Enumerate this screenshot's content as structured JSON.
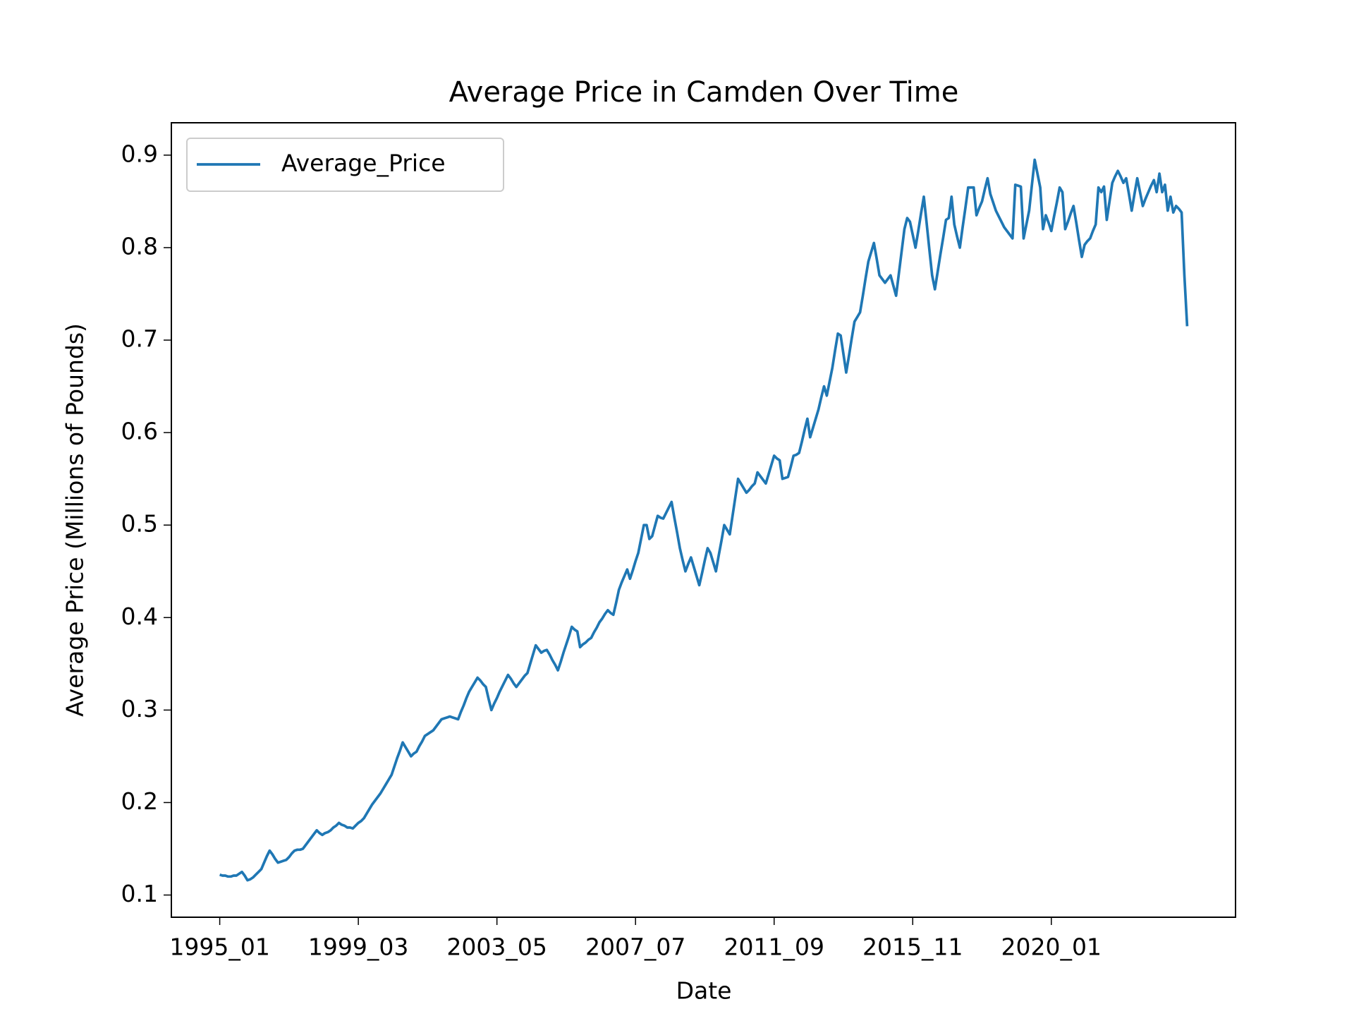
{
  "chart_data": {
    "type": "line",
    "title": "Average Price in Camden Over Time",
    "x_label": "Date",
    "y_label": "Average Price (Millions of Pounds)",
    "categories": [
      "1995_01",
      null,
      null,
      null,
      null,
      null,
      null,
      null,
      null,
      null,
      null,
      null,
      null,
      null,
      null,
      null,
      null,
      null,
      null,
      null,
      null,
      null,
      null,
      null,
      null,
      null,
      null,
      null,
      null,
      null,
      null,
      null,
      null,
      null,
      null,
      null,
      null,
      null,
      null,
      null,
      null,
      null,
      null,
      null,
      null,
      null,
      null,
      null,
      null,
      null,
      "1999_03",
      null,
      null,
      null,
      null,
      null,
      null,
      null,
      null,
      null,
      null,
      null,
      null,
      null,
      null,
      null,
      null,
      null,
      null,
      null,
      null,
      null,
      null,
      null,
      null,
      null,
      null,
      null,
      null,
      null,
      null,
      null,
      null,
      null,
      null,
      null,
      null,
      null,
      null,
      null,
      null,
      null,
      null,
      null,
      null,
      null,
      null,
      null,
      null,
      null,
      "2003_05",
      null,
      null,
      null,
      null,
      null,
      null,
      null,
      null,
      null,
      null,
      null,
      null,
      null,
      null,
      null,
      null,
      null,
      null,
      null,
      null,
      null,
      null,
      null,
      null,
      null,
      null,
      null,
      null,
      null,
      null,
      null,
      null,
      null,
      null,
      null,
      null,
      null,
      null,
      null,
      null,
      null,
      null,
      null,
      null,
      null,
      null,
      null,
      null,
      null,
      "2007_07",
      null,
      null,
      null,
      null,
      null,
      null,
      null,
      null,
      null,
      null,
      null,
      null,
      null,
      null,
      null,
      null,
      null,
      null,
      null,
      null,
      null,
      null,
      null,
      null,
      null,
      null,
      null,
      null,
      null,
      null,
      null,
      null,
      null,
      null,
      null,
      null,
      null,
      null,
      null,
      null,
      null,
      null,
      null,
      null,
      null,
      null,
      null,
      null,
      null,
      "2011_09",
      null,
      null,
      null,
      null,
      null,
      null,
      null,
      null,
      null,
      null,
      null,
      null,
      null,
      null,
      null,
      null,
      null,
      null,
      null,
      null,
      null,
      null,
      null,
      null,
      null,
      null,
      null,
      null,
      null,
      null,
      null,
      null,
      null,
      null,
      null,
      null,
      null,
      null,
      null,
      null,
      null,
      null,
      null,
      null,
      null,
      null,
      null,
      null,
      null,
      "2015_11",
      null,
      null,
      null,
      null,
      null,
      null,
      null,
      null,
      null,
      null,
      null,
      null,
      null,
      null,
      null,
      null,
      null,
      null,
      null,
      null,
      null,
      null,
      null,
      null,
      null,
      null,
      null,
      null,
      null,
      null,
      null,
      null,
      null,
      null,
      null,
      null,
      null,
      null,
      null,
      null,
      null,
      null,
      null,
      null,
      null,
      null,
      null,
      null,
      null,
      "2020_01",
      null,
      null,
      null,
      null,
      null,
      null,
      null,
      null,
      null,
      null,
      null,
      null,
      null,
      null,
      null,
      null,
      null,
      null,
      null,
      null,
      null,
      null,
      null,
      null,
      null,
      null,
      null,
      null,
      null,
      null,
      null,
      null,
      null,
      null,
      null,
      null,
      null,
      null,
      null,
      null,
      null,
      null,
      null,
      null,
      null,
      null,
      null,
      null,
      null
    ],
    "series": [
      {
        "name": "Average_Price",
        "color": "#1f77b4",
        "values": [
          0.122,
          0.121,
          0.121,
          0.12,
          0.12,
          0.121,
          0.121,
          0.123,
          0.125,
          0.121,
          0.116,
          0.117,
          0.119,
          0.122,
          0.125,
          0.128,
          0.135,
          0.142,
          0.148,
          0.144,
          0.139,
          0.135,
          0.136,
          0.137,
          0.138,
          0.141,
          0.145,
          0.148,
          0.149,
          0.149,
          0.15,
          0.154,
          0.158,
          0.162,
          0.166,
          0.17,
          0.167,
          0.165,
          0.167,
          0.168,
          0.17,
          0.173,
          0.175,
          0.178,
          0.176,
          0.175,
          0.173,
          0.173,
          0.172,
          0.175,
          0.178,
          0.18,
          0.183,
          0.188,
          0.193,
          0.198,
          0.202,
          0.206,
          0.21,
          0.215,
          0.22,
          0.225,
          0.23,
          0.239,
          0.248,
          0.256,
          0.265,
          0.26,
          0.255,
          0.25,
          0.253,
          0.255,
          0.261,
          0.266,
          0.272,
          0.274,
          0.276,
          0.278,
          0.282,
          0.286,
          0.29,
          0.291,
          0.292,
          0.293,
          0.292,
          0.291,
          0.29,
          0.298,
          0.305,
          0.313,
          0.32,
          0.325,
          0.33,
          0.335,
          0.332,
          0.328,
          0.325,
          0.312,
          0.3,
          0.307,
          0.313,
          0.32,
          0.326,
          0.332,
          0.338,
          0.334,
          0.329,
          0.325,
          0.329,
          0.333,
          0.337,
          0.34,
          0.35,
          0.36,
          0.37,
          0.366,
          0.362,
          0.364,
          0.365,
          0.36,
          0.354,
          0.349,
          0.343,
          0.352,
          0.362,
          0.371,
          0.38,
          0.39,
          0.387,
          0.385,
          0.368,
          0.371,
          0.373,
          0.376,
          0.378,
          0.384,
          0.389,
          0.395,
          0.399,
          0.404,
          0.408,
          0.405,
          0.403,
          0.416,
          0.43,
          0.438,
          0.445,
          0.452,
          0.442,
          0.451,
          0.461,
          0.47,
          0.485,
          0.5,
          0.5,
          0.485,
          0.488,
          0.499,
          0.51,
          0.508,
          0.507,
          0.513,
          0.519,
          0.525,
          0.508,
          0.492,
          0.475,
          0.462,
          0.45,
          0.458,
          0.465,
          0.455,
          0.445,
          0.435,
          0.448,
          0.462,
          0.475,
          0.47,
          0.46,
          0.45,
          0.467,
          0.483,
          0.5,
          0.495,
          0.49,
          0.51,
          0.53,
          0.55,
          0.545,
          0.54,
          0.535,
          0.538,
          0.542,
          0.545,
          0.557,
          0.553,
          0.549,
          0.545,
          0.555,
          0.565,
          0.575,
          0.572,
          0.57,
          0.55,
          0.551,
          0.552,
          0.563,
          0.575,
          0.576,
          0.578,
          0.59,
          0.603,
          0.615,
          0.595,
          0.605,
          0.615,
          0.625,
          0.638,
          0.65,
          0.64,
          0.655,
          0.67,
          0.689,
          0.707,
          0.705,
          0.685,
          0.665,
          0.683,
          0.702,
          0.72,
          0.725,
          0.73,
          0.748,
          0.767,
          0.785,
          0.795,
          0.805,
          0.788,
          0.77,
          0.766,
          0.762,
          0.766,
          0.77,
          0.759,
          0.748,
          0.772,
          0.796,
          0.82,
          0.832,
          0.828,
          0.814,
          0.8,
          0.818,
          0.837,
          0.855,
          0.827,
          0.798,
          0.77,
          0.755,
          0.774,
          0.793,
          0.811,
          0.83,
          0.832,
          0.855,
          0.825,
          0.812,
          0.8,
          0.822,
          0.843,
          0.865,
          0.865,
          0.865,
          0.835,
          0.843,
          0.85,
          0.863,
          0.875,
          0.858,
          0.849,
          0.84,
          0.834,
          0.828,
          0.822,
          0.818,
          0.814,
          0.81,
          0.868,
          0.867,
          0.866,
          0.81,
          0.825,
          0.84,
          0.868,
          0.895,
          0.88,
          0.865,
          0.82,
          0.835,
          0.827,
          0.818,
          0.834,
          0.849,
          0.865,
          0.86,
          0.82,
          0.828,
          0.837,
          0.845,
          0.827,
          0.808,
          0.79,
          0.803,
          0.807,
          0.81,
          0.818,
          0.825,
          0.865,
          0.86,
          0.866,
          0.83,
          0.85,
          0.87,
          0.877,
          0.883,
          0.877,
          0.87,
          0.875,
          0.858,
          0.84,
          0.858,
          0.875,
          0.86,
          0.845,
          0.853,
          0.86,
          0.867,
          0.873,
          0.86,
          0.88,
          0.86,
          0.868,
          0.84,
          0.855,
          0.838,
          0.845,
          0.842,
          0.838,
          0.77,
          0.715
        ]
      }
    ],
    "xlim": [
      -17.45,
      366.45
    ],
    "ylim": [
      0.076,
      0.935
    ],
    "yticks": [
      0.1,
      0.2,
      0.3,
      0.4,
      0.5,
      0.6,
      0.7,
      0.8,
      0.9
    ],
    "legend": "upper left"
  }
}
